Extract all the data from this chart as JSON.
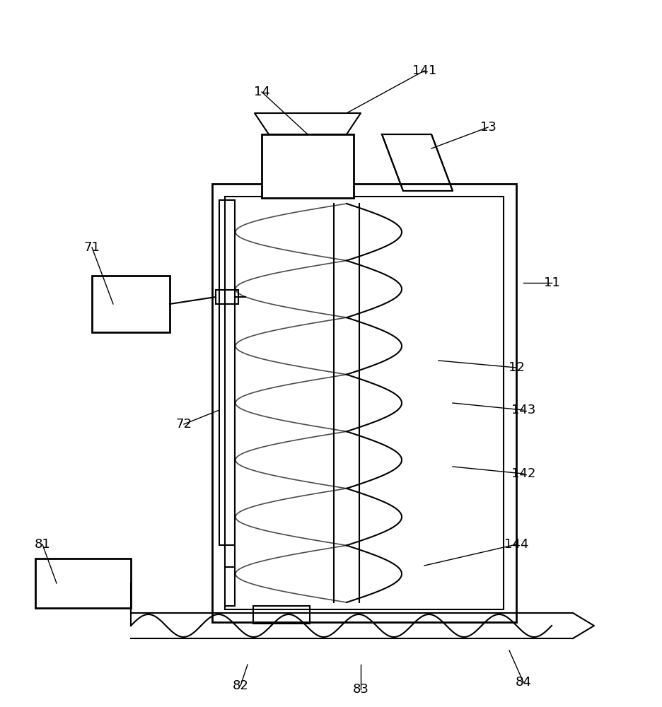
{
  "bg_color": "#ffffff",
  "line_color": "#000000",
  "label_color": "#000000",
  "fig_width": 9.36,
  "fig_height": 10.0,
  "dpi": 100
}
